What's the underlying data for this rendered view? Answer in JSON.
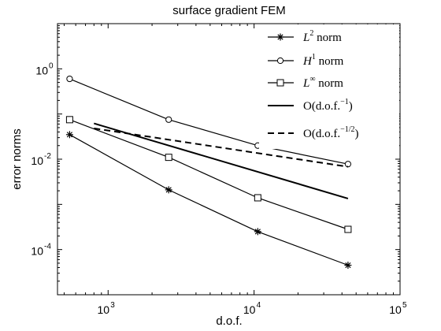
{
  "chart_data": {
    "type": "line",
    "title": "surface gradient FEM",
    "xlabel": "d.o.f.",
    "ylabel": "error norms",
    "xscale": "log",
    "yscale": "log",
    "xlim": [
      450,
      100000
    ],
    "ylim": [
      1e-05,
      10
    ],
    "xticks": [
      {
        "value": 1000,
        "base": "10",
        "exp": "3"
      },
      {
        "value": 10000,
        "base": "10",
        "exp": "4"
      },
      {
        "value": 100000,
        "base": "10",
        "exp": "5"
      }
    ],
    "yticks": [
      {
        "value": 0.0001,
        "base": "10",
        "exp": "-4"
      },
      {
        "value": 0.01,
        "base": "10",
        "exp": "-2"
      },
      {
        "value": 1,
        "base": "10",
        "exp": "0"
      }
    ],
    "grid": false,
    "legend_position": "top-right",
    "series": [
      {
        "name": "L",
        "sup": "2",
        "suffix": " norm",
        "marker": "star",
        "style": "solid",
        "x": [
          545,
          2600,
          10600,
          44000
        ],
        "y": [
          0.035,
          0.0021,
          0.00025,
          4.5e-05
        ]
      },
      {
        "name": "H",
        "sup": "1",
        "suffix": " norm",
        "marker": "circle",
        "style": "solid",
        "x": [
          545,
          2600,
          10600,
          44000
        ],
        "y": [
          0.6,
          0.075,
          0.02,
          0.0078
        ]
      },
      {
        "name": "L",
        "sup": "∞",
        "suffix": " norm",
        "marker": "square",
        "style": "solid",
        "x": [
          545,
          2600,
          10600,
          44000
        ],
        "y": [
          0.075,
          0.011,
          0.0014,
          0.00028
        ]
      },
      {
        "name": "O(d.o.f.",
        "sup": "−1",
        "suffix": ")",
        "marker": "none",
        "style": "solid-thick",
        "x": [
          800,
          44000
        ],
        "y": [
          0.062,
          0.00135
        ]
      },
      {
        "name": "O(d.o.f.",
        "sup": "−1/2",
        "suffix": ")",
        "marker": "none",
        "style": "dashed",
        "x": [
          800,
          44000
        ],
        "y": [
          0.048,
          0.0068
        ]
      }
    ]
  }
}
